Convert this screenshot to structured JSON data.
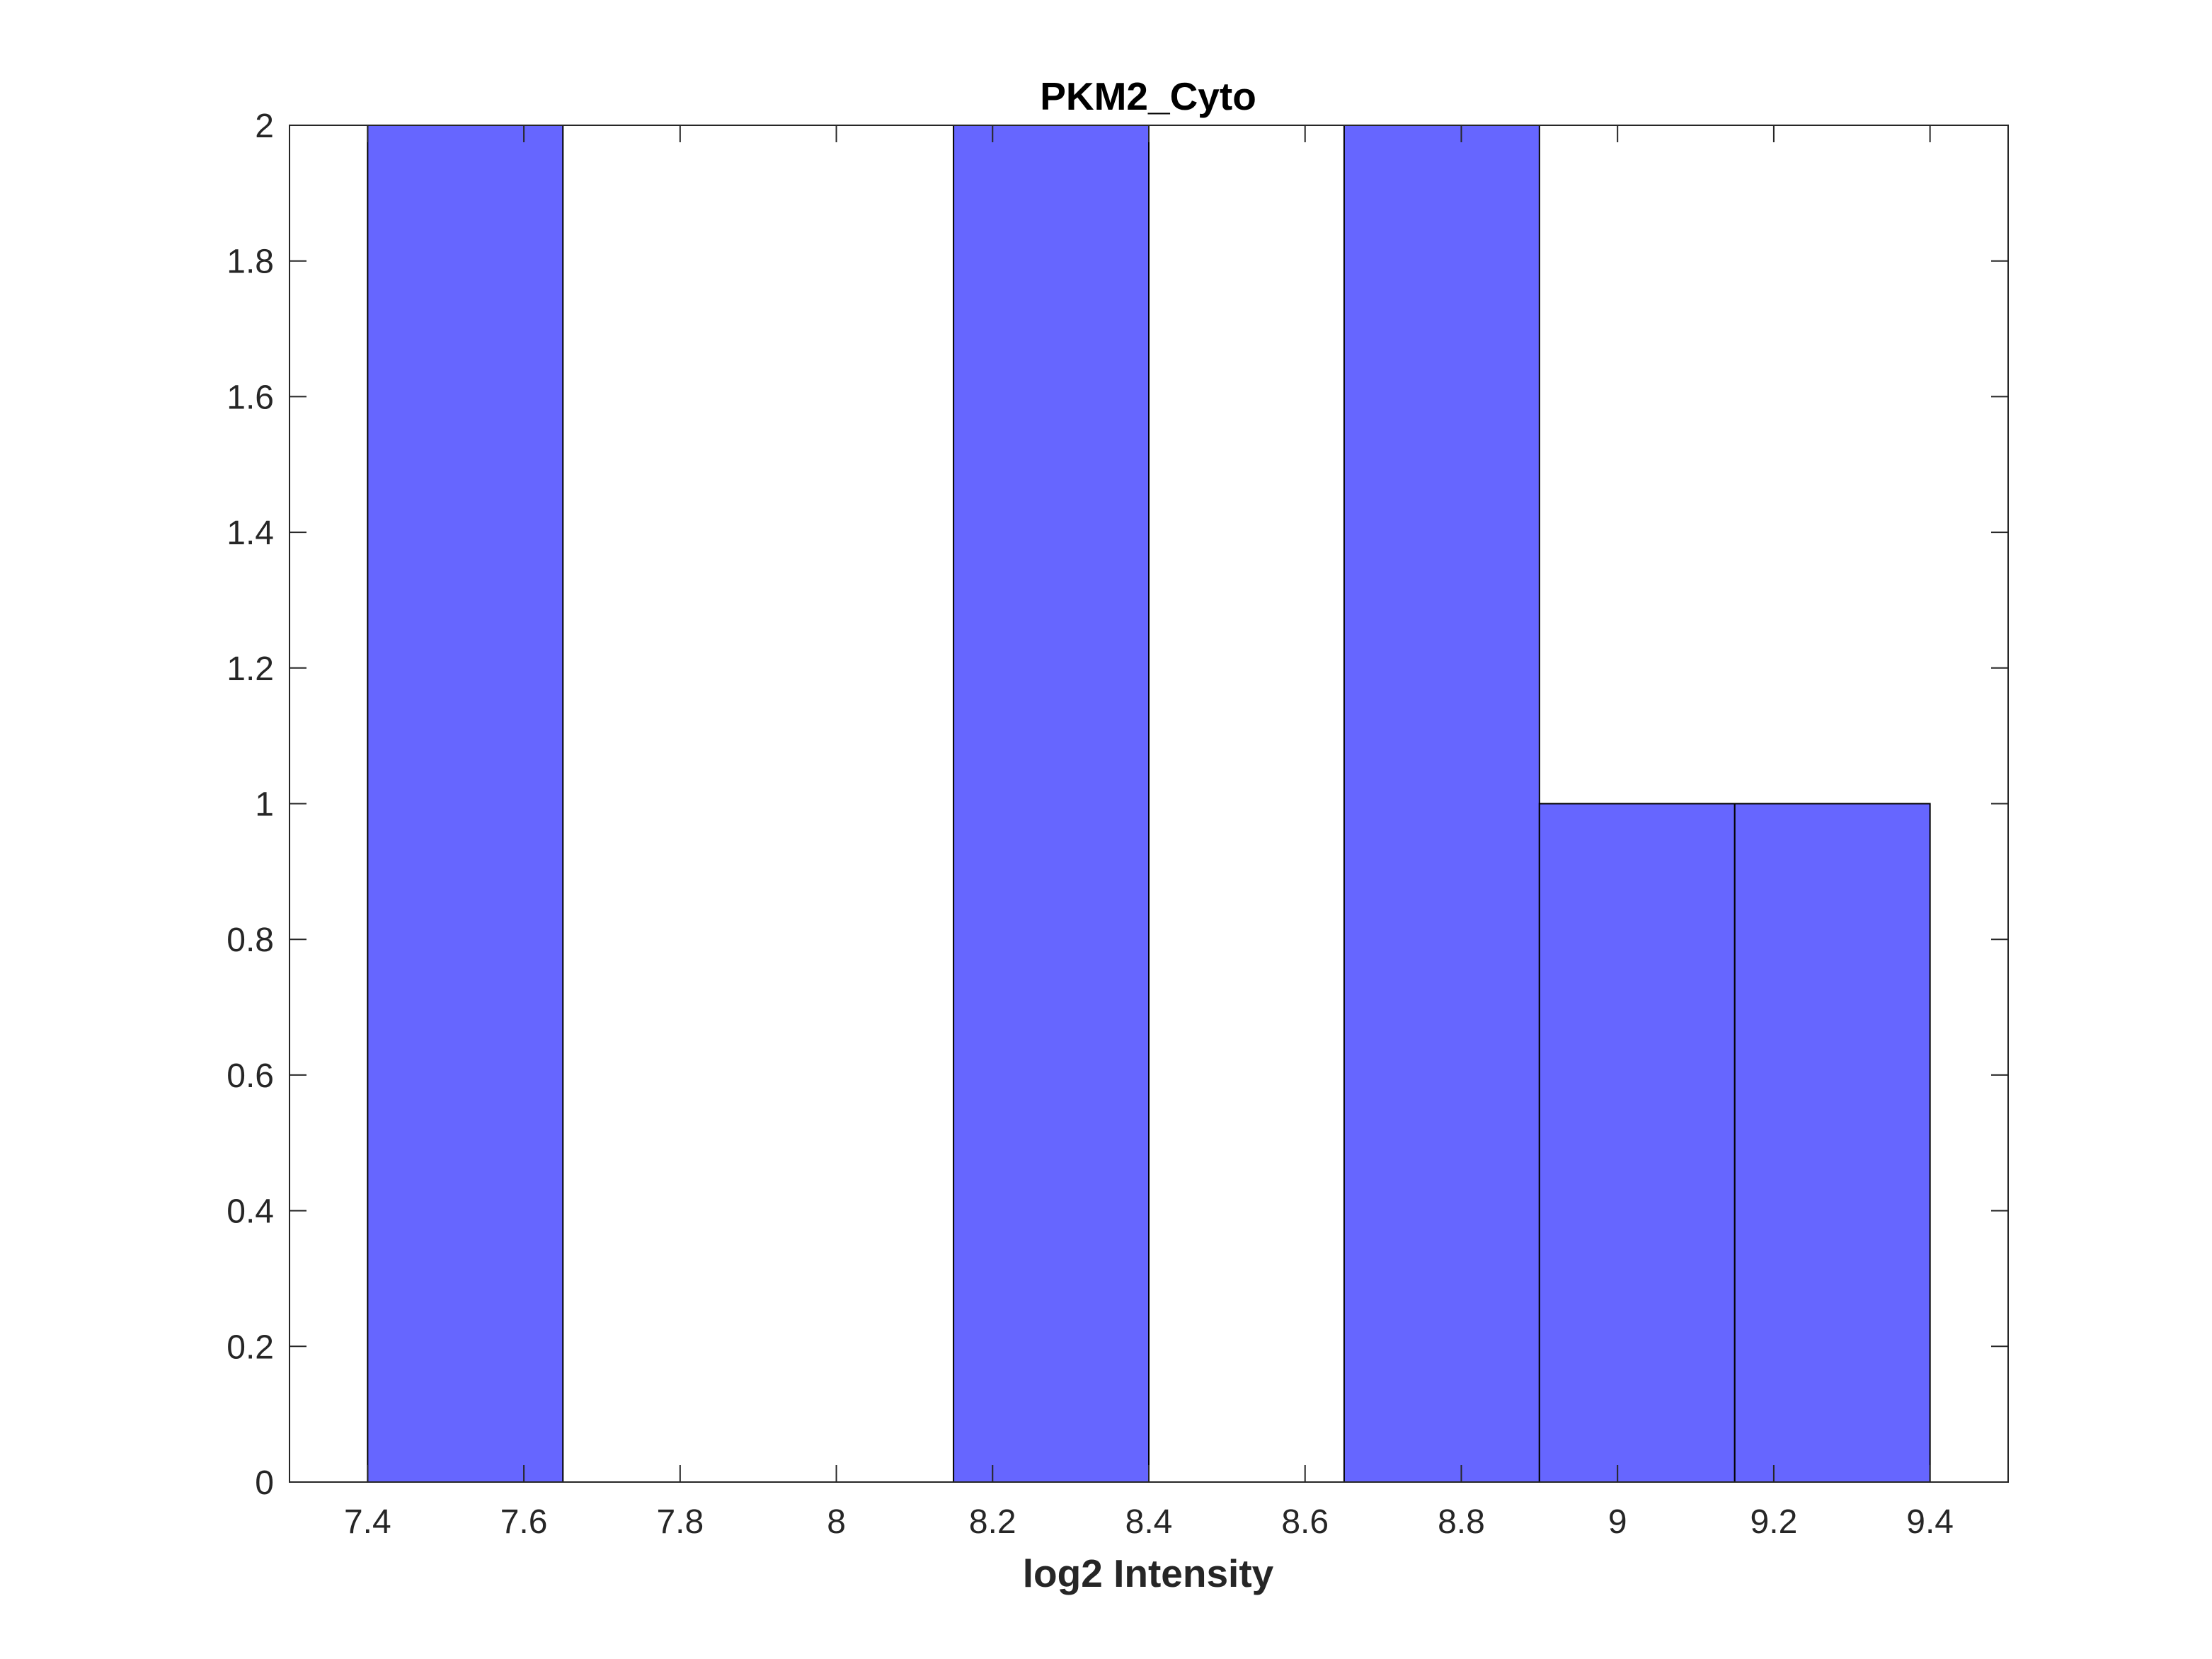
{
  "chart_data": {
    "type": "bar",
    "subtype": "histogram",
    "title": "PKM2_Cyto",
    "xlabel": "log2 Intensity",
    "ylabel": "",
    "xlim": [
      7.3,
      9.5
    ],
    "ylim": [
      0,
      2
    ],
    "x_ticks": [
      "7.4",
      "7.6",
      "7.8",
      "8",
      "8.2",
      "8.4",
      "8.6",
      "8.8",
      "9",
      "9.2",
      "9.4"
    ],
    "y_ticks": [
      "0",
      "0.2",
      "0.4",
      "0.6",
      "0.8",
      "1",
      "1.2",
      "1.4",
      "1.6",
      "1.8",
      "2"
    ],
    "bin_edges": [
      7.4,
      7.65,
      7.9,
      8.15,
      8.4,
      8.65,
      8.9,
      9.15,
      9.4
    ],
    "counts": [
      2,
      0,
      0,
      2,
      0,
      2,
      1,
      1
    ],
    "bar_color": "#6666ff",
    "edge_color": "#000000",
    "grid": false,
    "legend": "none"
  }
}
